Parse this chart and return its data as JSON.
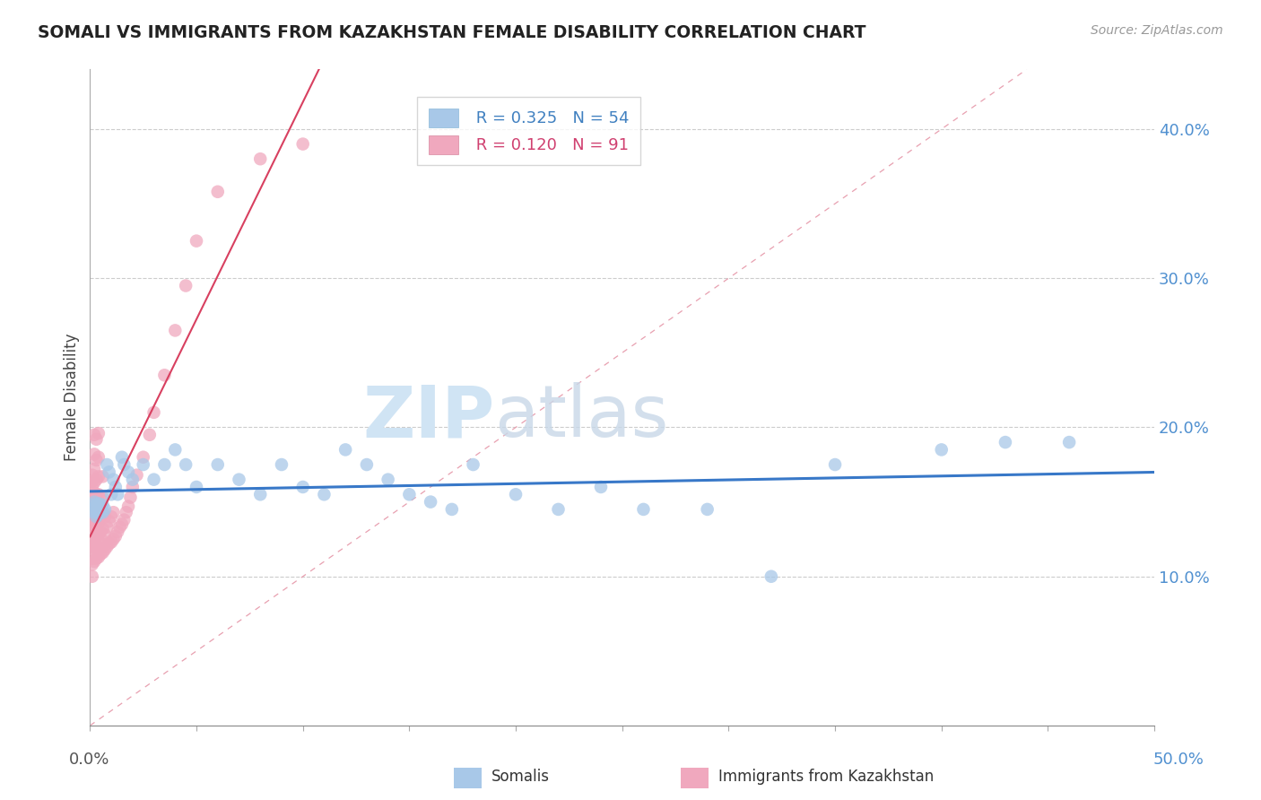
{
  "title": "SOMALI VS IMMIGRANTS FROM KAZAKHSTAN FEMALE DISABILITY CORRELATION CHART",
  "source": "Source: ZipAtlas.com",
  "ylabel": "Female Disability",
  "xmin": 0.0,
  "xmax": 0.5,
  "ymin": 0.0,
  "ymax": 0.44,
  "yticks": [
    0.1,
    0.2,
    0.3,
    0.4
  ],
  "ytick_labels": [
    "10.0%",
    "20.0%",
    "30.0%",
    "40.0%"
  ],
  "legend_r_somali": "R = 0.325",
  "legend_n_somali": "N = 54",
  "legend_r_kazakh": "R = 0.120",
  "legend_n_kazakh": "N = 91",
  "somali_color": "#a8c8e8",
  "kazakh_color": "#f0a8be",
  "somali_line_color": "#3878c8",
  "kazakh_line_color": "#d84060",
  "watermark_zip": "ZIP",
  "watermark_atlas": "atlas",
  "somali_x": [
    0.001,
    0.001,
    0.002,
    0.002,
    0.003,
    0.003,
    0.003,
    0.004,
    0.004,
    0.004,
    0.005,
    0.005,
    0.006,
    0.006,
    0.007,
    0.008,
    0.009,
    0.01,
    0.011,
    0.012,
    0.013,
    0.015,
    0.016,
    0.018,
    0.02,
    0.025,
    0.03,
    0.035,
    0.04,
    0.045,
    0.05,
    0.06,
    0.07,
    0.08,
    0.09,
    0.1,
    0.11,
    0.12,
    0.13,
    0.14,
    0.15,
    0.16,
    0.17,
    0.18,
    0.2,
    0.22,
    0.24,
    0.26,
    0.29,
    0.32,
    0.35,
    0.4,
    0.43,
    0.46
  ],
  "somali_y": [
    0.145,
    0.148,
    0.143,
    0.15,
    0.14,
    0.145,
    0.148,
    0.142,
    0.146,
    0.149,
    0.144,
    0.147,
    0.143,
    0.148,
    0.145,
    0.175,
    0.17,
    0.155,
    0.165,
    0.16,
    0.155,
    0.18,
    0.175,
    0.17,
    0.165,
    0.175,
    0.165,
    0.175,
    0.185,
    0.175,
    0.16,
    0.175,
    0.165,
    0.155,
    0.175,
    0.16,
    0.155,
    0.185,
    0.175,
    0.165,
    0.155,
    0.15,
    0.145,
    0.175,
    0.155,
    0.145,
    0.16,
    0.145,
    0.145,
    0.1,
    0.175,
    0.185,
    0.19,
    0.19
  ],
  "kazakh_x": [
    0.001,
    0.001,
    0.001,
    0.001,
    0.001,
    0.001,
    0.001,
    0.001,
    0.001,
    0.001,
    0.001,
    0.001,
    0.001,
    0.001,
    0.001,
    0.001,
    0.001,
    0.001,
    0.001,
    0.001,
    0.002,
    0.002,
    0.002,
    0.002,
    0.002,
    0.002,
    0.002,
    0.002,
    0.002,
    0.002,
    0.002,
    0.003,
    0.003,
    0.003,
    0.003,
    0.003,
    0.003,
    0.003,
    0.003,
    0.003,
    0.004,
    0.004,
    0.004,
    0.004,
    0.004,
    0.004,
    0.004,
    0.004,
    0.004,
    0.005,
    0.005,
    0.005,
    0.005,
    0.005,
    0.006,
    0.006,
    0.006,
    0.006,
    0.006,
    0.006,
    0.007,
    0.007,
    0.007,
    0.008,
    0.008,
    0.009,
    0.009,
    0.01,
    0.01,
    0.011,
    0.011,
    0.012,
    0.013,
    0.014,
    0.015,
    0.016,
    0.017,
    0.018,
    0.019,
    0.02,
    0.022,
    0.025,
    0.028,
    0.03,
    0.035,
    0.04,
    0.045,
    0.05,
    0.06,
    0.08,
    0.1
  ],
  "kazakh_y": [
    0.1,
    0.108,
    0.112,
    0.118,
    0.12,
    0.122,
    0.125,
    0.128,
    0.13,
    0.133,
    0.136,
    0.14,
    0.143,
    0.147,
    0.15,
    0.153,
    0.157,
    0.16,
    0.164,
    0.168,
    0.11,
    0.12,
    0.128,
    0.133,
    0.14,
    0.148,
    0.155,
    0.163,
    0.172,
    0.182,
    0.195,
    0.112,
    0.12,
    0.128,
    0.136,
    0.145,
    0.155,
    0.165,
    0.178,
    0.192,
    0.113,
    0.12,
    0.128,
    0.136,
    0.145,
    0.155,
    0.167,
    0.18,
    0.196,
    0.115,
    0.122,
    0.13,
    0.14,
    0.152,
    0.116,
    0.124,
    0.132,
    0.142,
    0.153,
    0.167,
    0.118,
    0.128,
    0.14,
    0.12,
    0.133,
    0.122,
    0.137,
    0.123,
    0.14,
    0.125,
    0.143,
    0.127,
    0.13,
    0.133,
    0.135,
    0.138,
    0.143,
    0.147,
    0.153,
    0.16,
    0.168,
    0.18,
    0.195,
    0.21,
    0.235,
    0.265,
    0.295,
    0.325,
    0.358,
    0.38,
    0.39
  ]
}
